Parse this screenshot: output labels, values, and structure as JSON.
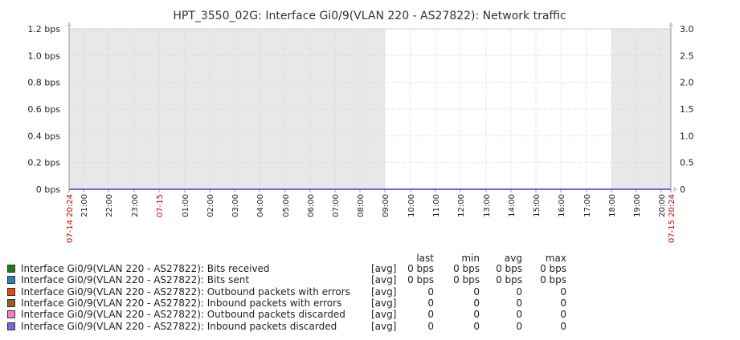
{
  "chart_data": {
    "type": "line",
    "title": "HPT_3550_02G: Interface Gi0/9(VLAN 220 - AS27822): Network traffic",
    "x_labels": [
      "07-14 20:24",
      "21:00",
      "22:00",
      "23:00",
      "07-15",
      "01:00",
      "02:00",
      "03:00",
      "04:00",
      "05:00",
      "06:00",
      "07:00",
      "08:00",
      "09:00",
      "10:00",
      "11:00",
      "12:00",
      "13:00",
      "14:00",
      "15:00",
      "16:00",
      "17:00",
      "18:00",
      "19:00",
      "20:00",
      "07-15 20:24"
    ],
    "x_label_red": [
      true,
      false,
      false,
      false,
      true,
      false,
      false,
      false,
      false,
      false,
      false,
      false,
      false,
      false,
      false,
      false,
      false,
      false,
      false,
      false,
      false,
      false,
      false,
      false,
      false,
      true
    ],
    "left_axis": {
      "ticks": [
        "1.2 bps",
        "1.0 bps",
        "0.8 bps",
        "0.6 bps",
        "0.4 bps",
        "0.2 bps",
        "0 bps"
      ],
      "ylim": [
        0,
        1.2
      ]
    },
    "right_axis": {
      "ticks": [
        "3.0",
        "2.5",
        "2.0",
        "1.5",
        "1.0",
        "0.5",
        "0"
      ],
      "ylim": [
        0,
        3.0
      ]
    },
    "series": [
      {
        "name": "Interface Gi0/9(VLAN 220 - AS27822): Bits received",
        "color": "#1a7c11",
        "values": [
          0,
          0
        ]
      },
      {
        "name": "Interface Gi0/9(VLAN 220 - AS27822): Bits sent",
        "color": "#2b7fbf",
        "values": [
          0,
          0
        ]
      },
      {
        "name": "Interface Gi0/9(VLAN 220 - AS27822): Outbound packets with errors",
        "color": "#e8470f",
        "values": [
          0,
          0
        ]
      },
      {
        "name": "Interface Gi0/9(VLAN 220 - AS27822): Inbound packets with errors",
        "color": "#9c5a1b",
        "values": [
          0,
          0
        ]
      },
      {
        "name": "Interface Gi0/9(VLAN 220 - AS27822): Outbound packets discarded",
        "color": "#f07fc2",
        "values": [
          0,
          0
        ]
      },
      {
        "name": "Interface Gi0/9(VLAN 220 - AS27822): Inbound packets discarded",
        "color": "#7a66e0",
        "values": [
          0,
          0
        ]
      }
    ],
    "grid": true,
    "shading": {
      "color": "#e8e8e8",
      "periods": [
        [
          "07-14 20:24",
          "09:00"
        ],
        [
          "18:00",
          "07-15 20:24"
        ]
      ]
    },
    "legend": {
      "position": "bottom",
      "headers": [
        "last",
        "min",
        "avg",
        "max"
      ],
      "func": "[avg]",
      "rows": [
        [
          "0 bps",
          "0 bps",
          "0 bps",
          "0 bps"
        ],
        [
          "0 bps",
          "0 bps",
          "0 bps",
          "0 bps"
        ],
        [
          "0",
          "0",
          "0",
          "0"
        ],
        [
          "0",
          "0",
          "0",
          "0"
        ],
        [
          "0",
          "0",
          "0",
          "0"
        ],
        [
          "0",
          "0",
          "0",
          "0"
        ]
      ]
    }
  }
}
